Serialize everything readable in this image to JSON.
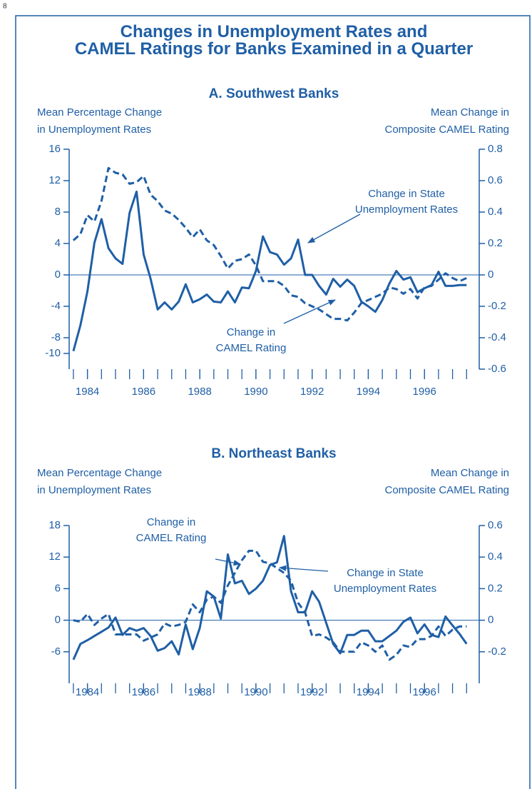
{
  "page_number": "8",
  "title": "Changes in Unemployment Rates and\nCAMEL Ratings for Banks Examined in a Quarter",
  "chart_data": [
    {
      "type": "line",
      "title": "A. Southwest Banks",
      "ylabel": "Mean Percentage Change\nin Unemployment Rates",
      "y2label": "Mean Change in\nComposite CAMEL Rating",
      "xlim": [
        1983.35,
        1997.95
      ],
      "xticks": [
        1984,
        1986,
        1988,
        1990,
        1992,
        1994,
        1996
      ],
      "ylim": [
        -12,
        16
      ],
      "yticks": [
        -10,
        -8,
        -4,
        0,
        4,
        8,
        12,
        16
      ],
      "y2lim": [
        -0.6,
        0.8
      ],
      "y2ticks": [
        -0.6,
        -0.4,
        -0.2,
        0,
        0.2,
        0.4,
        0.6,
        0.8
      ],
      "x": [
        1983.5,
        1983.75,
        1984,
        1984.25,
        1984.5,
        1984.75,
        1985,
        1985.25,
        1985.5,
        1985.75,
        1986,
        1986.25,
        1986.5,
        1986.75,
        1987,
        1987.25,
        1987.5,
        1987.75,
        1988,
        1988.25,
        1988.5,
        1988.75,
        1989,
        1989.25,
        1989.5,
        1989.75,
        1990,
        1990.25,
        1990.5,
        1990.75,
        1991,
        1991.25,
        1991.5,
        1991.75,
        1992,
        1992.25,
        1992.5,
        1992.75,
        1993,
        1993.25,
        1993.5,
        1993.75,
        1994,
        1994.25,
        1994.5,
        1994.75,
        1995,
        1995.25,
        1995.5,
        1995.75,
        1996,
        1996.25,
        1996.5,
        1996.75,
        1997,
        1997.25,
        1997.5
      ],
      "series": [
        {
          "name": "Change in State\nUnemployment Rates",
          "color": "#1f5fa6",
          "dashed": false,
          "values": [
            -9.7,
            -6.4,
            -2.1,
            4.1,
            7.1,
            3.4,
            2.1,
            1.4,
            7.9,
            10.6,
            2.6,
            -0.5,
            -4.4,
            -3.5,
            -4.4,
            -3.4,
            -1.2,
            -3.5,
            -3.1,
            -2.5,
            -3.4,
            -3.5,
            -2.1,
            -3.5,
            -1.6,
            -1.7,
            0.5,
            4.9,
            2.9,
            2.6,
            1.3,
            2.1,
            4.5,
            0,
            0,
            -1.4,
            -2.5,
            -0.5,
            -1.5,
            -0.6,
            -1.4,
            -3.4,
            -4.0,
            -4.7,
            -3.2,
            -1.1,
            0.5,
            -0.6,
            -0.3,
            -2.2,
            -1.7,
            -1.3,
            0.4,
            -1.4,
            -1.4,
            -1.3,
            -1.3
          ]
        },
        {
          "name": "Change in\nCAMEL Rating",
          "color": "#1f5fa6",
          "dashed": true,
          "axis": "y2",
          "values": [
            0.22,
            0.26,
            0.38,
            0.34,
            0.47,
            0.68,
            0.65,
            0.64,
            0.58,
            0.59,
            0.63,
            0.51,
            0.47,
            0.41,
            0.39,
            0.35,
            0.3,
            0.24,
            0.29,
            0.22,
            0.19,
            0.12,
            0.04,
            0.09,
            0.1,
            0.13,
            0.06,
            -0.04,
            -0.04,
            -0.04,
            -0.07,
            -0.13,
            -0.14,
            -0.18,
            -0.2,
            -0.22,
            -0.25,
            -0.28,
            -0.28,
            -0.29,
            -0.24,
            -0.18,
            -0.16,
            -0.14,
            -0.12,
            -0.08,
            -0.09,
            -0.12,
            -0.09,
            -0.15,
            -0.08,
            -0.07,
            -0.03,
            0.01,
            -0.02,
            -0.04,
            -0.02
          ]
        }
      ]
    },
    {
      "type": "line",
      "title": "B. Northeast Banks",
      "ylabel": "Mean Percentage Change\nin Unemployment Rates",
      "y2label": "Mean Change in\nComposite CAMEL Rating",
      "xlim": [
        1983.35,
        1997.95
      ],
      "xticks": [
        1984,
        1986,
        1988,
        1990,
        1992,
        1994,
        1996
      ],
      "ylim": [
        -12,
        18
      ],
      "yticks": [
        -6,
        0,
        6,
        12,
        18
      ],
      "y2lim": [
        -0.4,
        0.6
      ],
      "y2ticks": [
        -0.2,
        0,
        0.2,
        0.4,
        0.6
      ],
      "x": [
        1983.5,
        1983.75,
        1984,
        1984.25,
        1984.5,
        1984.75,
        1985,
        1985.25,
        1985.5,
        1985.75,
        1986,
        1986.25,
        1986.5,
        1986.75,
        1987,
        1987.25,
        1987.5,
        1987.75,
        1988,
        1988.25,
        1988.5,
        1988.75,
        1989,
        1989.25,
        1989.5,
        1989.75,
        1990,
        1990.25,
        1990.5,
        1990.75,
        1991,
        1991.25,
        1991.5,
        1991.75,
        1992,
        1992.25,
        1992.5,
        1992.75,
        1993,
        1993.25,
        1993.5,
        1993.75,
        1994,
        1994.25,
        1994.5,
        1994.75,
        1995,
        1995.25,
        1995.5,
        1995.75,
        1996,
        1996.25,
        1996.5,
        1996.75,
        1997,
        1997.25,
        1997.5
      ],
      "series": [
        {
          "name": "Change in State\nUnemployment Rates",
          "color": "#1f5fa6",
          "dashed": false,
          "values": [
            -7.5,
            -4.5,
            -3.8,
            -3.0,
            -2.2,
            -1.4,
            0.5,
            -2.8,
            -1.5,
            -2.0,
            -1.5,
            -3.0,
            -5.8,
            -5.3,
            -4.0,
            -6.5,
            -0.8,
            -5.5,
            -1.5,
            5.5,
            4.5,
            0.3,
            12.5,
            7.0,
            7.5,
            5.0,
            6.0,
            7.5,
            10.5,
            11,
            16,
            5.5,
            1.5,
            1.5,
            5.5,
            3.5,
            -0.5,
            -4.5,
            -6.3,
            -2.8,
            -2.8,
            -2.0,
            -2.0,
            -4.0,
            -4.0,
            -3.0,
            -2.0,
            -0.3,
            0.5,
            -2.5,
            -0.8,
            -2.8,
            -3.2,
            0.7,
            -1.0,
            -2.6,
            -4.5
          ]
        },
        {
          "name": "Change in\nCAMEL Rating",
          "color": "#1f5fa6",
          "dashed": true,
          "axis": "y2",
          "values": [
            0,
            -0.01,
            0.04,
            -0.03,
            0.01,
            0.04,
            -0.09,
            -0.09,
            -0.09,
            -0.09,
            -0.13,
            -0.11,
            -0.09,
            -0.02,
            -0.04,
            -0.03,
            -0.01,
            0.1,
            0.05,
            0.13,
            0.15,
            0.11,
            0.22,
            0.3,
            0.38,
            0.44,
            0.44,
            0.37,
            0.36,
            0.33,
            0.3,
            0.25,
            0.11,
            0.05,
            -0.1,
            -0.09,
            -0.11,
            -0.14,
            -0.2,
            -0.2,
            -0.2,
            -0.14,
            -0.16,
            -0.2,
            -0.16,
            -0.25,
            -0.22,
            -0.16,
            -0.17,
            -0.12,
            -0.12,
            -0.1,
            -0.04,
            -0.1,
            -0.06,
            -0.04,
            -0.04
          ]
        }
      ]
    }
  ]
}
